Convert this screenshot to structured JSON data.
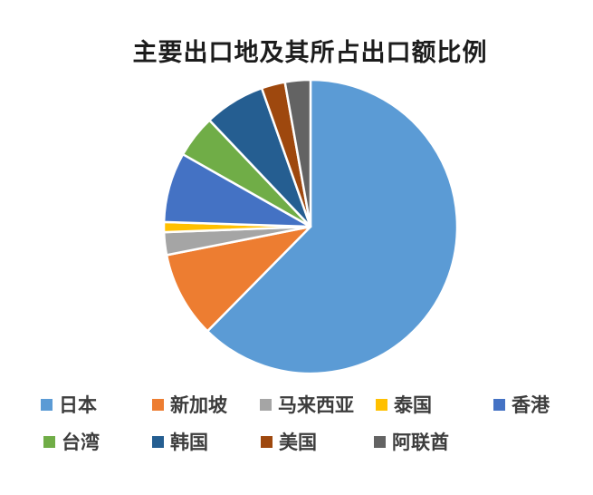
{
  "chart_data": {
    "type": "pie",
    "title": "主要出口地及其所占出口额比例",
    "start_angle_deg": 0,
    "direction": "clockwise",
    "legend_position": "bottom",
    "background_color": "#ffffff",
    "slice_gap_color": "#ffffff",
    "title_color": "#1c1c1c",
    "legend_text_color": "#3d3d3d",
    "slices": [
      {
        "label": "日本",
        "color": "#5B9BD5",
        "value_pct": 62.4
      },
      {
        "label": "新加坡",
        "color": "#ED7D31",
        "value_pct": 9.5
      },
      {
        "label": "马来西亚",
        "color": "#A5A5A5",
        "value_pct": 2.5
      },
      {
        "label": "泰国",
        "color": "#FFC000",
        "value_pct": 1.1
      },
      {
        "label": "香港",
        "color": "#4472C4",
        "value_pct": 7.7
      },
      {
        "label": "台湾",
        "color": "#70AD47",
        "value_pct": 4.7
      },
      {
        "label": "韩国",
        "color": "#255E91",
        "value_pct": 6.7
      },
      {
        "label": "美国",
        "color": "#9E480E",
        "value_pct": 2.6
      },
      {
        "label": "阿联酋",
        "color": "#636363",
        "value_pct": 2.8
      }
    ]
  }
}
